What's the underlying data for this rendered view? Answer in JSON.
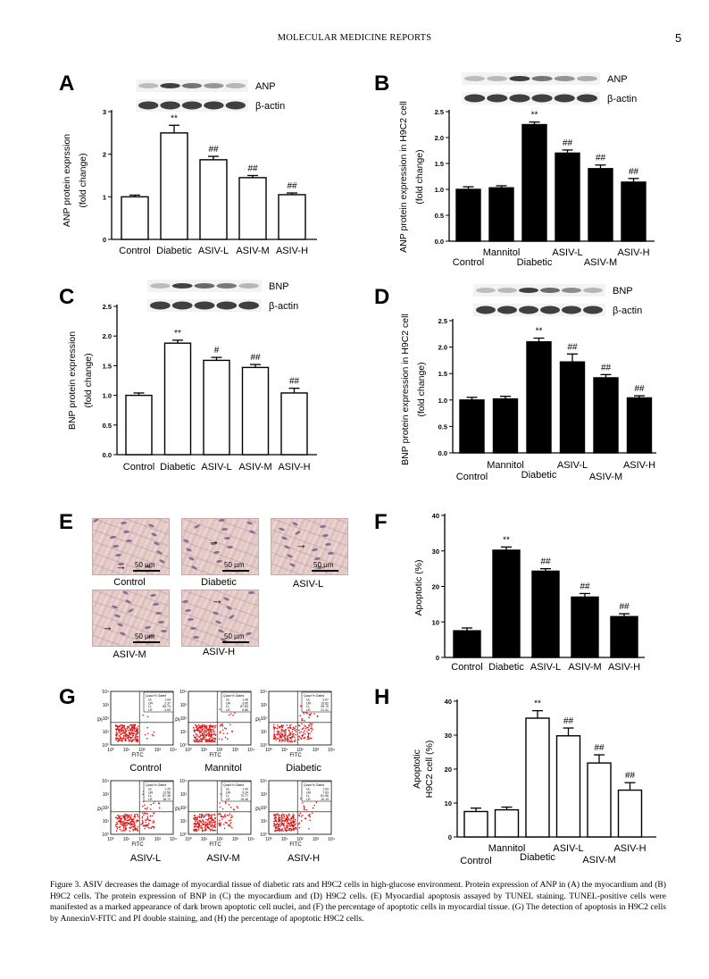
{
  "header": {
    "title": "MOLECULAR MEDICINE REPORTS",
    "page": "5"
  },
  "chart_data": [
    {
      "panel": "A",
      "type": "bar",
      "style": "open",
      "categories": [
        "Control",
        "Diabetic",
        "ASIV-L",
        "ASIV-M",
        "ASIV-H"
      ],
      "values": [
        1.0,
        2.5,
        1.87,
        1.45,
        1.05
      ],
      "errors": [
        0.04,
        0.18,
        0.08,
        0.05,
        0.04
      ],
      "annotations": [
        "",
        "**",
        "##",
        "##",
        "##"
      ],
      "ylabel": [
        "ANP protein exprssion",
        "(fold change)"
      ],
      "ylim": [
        0,
        3
      ],
      "yticks": [
        0,
        1,
        2,
        3
      ],
      "blot_labels": [
        "ANP",
        "β-actin"
      ]
    },
    {
      "panel": "B",
      "type": "bar",
      "style": "filled",
      "categories": [
        "Control",
        "Mannitol",
        "Diabetic",
        "ASIV-L",
        "ASIV-M",
        "ASIV-H"
      ],
      "values": [
        1.0,
        1.03,
        2.25,
        1.7,
        1.4,
        1.14
      ],
      "errors": [
        0.05,
        0.04,
        0.05,
        0.06,
        0.07,
        0.07
      ],
      "annotations": [
        "",
        "",
        "**",
        "##",
        "##",
        "##"
      ],
      "ylabel": [
        "ANP protein expression in H9C2 cell",
        "(fold change)"
      ],
      "ylim": [
        0,
        2.5
      ],
      "yticks": [
        0.0,
        0.5,
        1.0,
        1.5,
        2.0,
        2.5
      ],
      "blot_labels": [
        "ANP",
        "β-actin"
      ]
    },
    {
      "panel": "C",
      "type": "bar",
      "style": "open",
      "categories": [
        "Control",
        "Diabetic",
        "ASIV-L",
        "ASIV-M",
        "ASIV-H"
      ],
      "values": [
        1.0,
        1.88,
        1.59,
        1.47,
        1.04
      ],
      "errors": [
        0.04,
        0.05,
        0.05,
        0.05,
        0.08
      ],
      "annotations": [
        "",
        "**",
        "#",
        "##",
        "##"
      ],
      "ylabel": [
        "BNP protein expression",
        "(fold change)"
      ],
      "ylim": [
        0,
        2.5
      ],
      "yticks": [
        0.0,
        0.5,
        1.0,
        1.5,
        2.0,
        2.5
      ],
      "blot_labels": [
        "BNP",
        "β-actin"
      ]
    },
    {
      "panel": "D",
      "type": "bar",
      "style": "filled",
      "categories": [
        "Control",
        "Mannitol",
        "Diabetic",
        "ASIV-L",
        "ASIV-M",
        "ASIV-H"
      ],
      "values": [
        1.0,
        1.02,
        2.1,
        1.72,
        1.42,
        1.04
      ],
      "errors": [
        0.05,
        0.05,
        0.07,
        0.15,
        0.06,
        0.04
      ],
      "annotations": [
        "",
        "",
        "**",
        "##",
        "##",
        "##"
      ],
      "ylabel": [
        "BNP protein expression in H9C2 cell",
        "(fold change)"
      ],
      "ylim": [
        0,
        2.5
      ],
      "yticks": [
        0.0,
        0.5,
        1.0,
        1.5,
        2.0,
        2.5
      ],
      "blot_labels": [
        "BNP",
        "β-actin"
      ]
    },
    {
      "panel": "F",
      "type": "bar",
      "style": "filled",
      "categories": [
        "Control",
        "Diabetic",
        "ASIV-L",
        "ASIV-M",
        "ASIV-H"
      ],
      "values": [
        7.5,
        30.2,
        24.3,
        17.0,
        11.5
      ],
      "errors": [
        0.8,
        0.9,
        0.7,
        1.0,
        0.8
      ],
      "annotations": [
        "",
        "**",
        "##",
        "##",
        "##"
      ],
      "ylabel": [
        "Apoptotic  (%)"
      ],
      "ylim": [
        0,
        40
      ],
      "yticks": [
        0,
        10,
        20,
        30,
        40
      ]
    },
    {
      "panel": "H",
      "type": "bar",
      "style": "open",
      "categories": [
        "Control",
        "Mannitol",
        "Diabetic",
        "ASIV-L",
        "ASIV-M",
        "ASIV-H"
      ],
      "values": [
        7.5,
        8.0,
        35.0,
        29.8,
        21.8,
        13.8
      ],
      "errors": [
        1.0,
        0.8,
        2.2,
        2.3,
        2.4,
        2.2
      ],
      "annotations": [
        "",
        "",
        "**",
        "##",
        "##",
        "##"
      ],
      "ylabel": [
        "Apoptotic",
        "H9C2 cell  (%)"
      ],
      "ylim": [
        0,
        40
      ],
      "yticks": [
        0,
        10,
        20,
        30,
        40
      ]
    }
  ],
  "panel_e": {
    "scale_text": "50 μm",
    "images": [
      "Control",
      "Diabetic",
      "ASIV-L",
      "ASIV-M",
      "ASIV-H"
    ]
  },
  "panel_g": {
    "x_axis": "FITC",
    "y_axis": "PI",
    "ticks": [
      "10⁰",
      "10¹",
      "10²",
      "10³",
      "10⁴"
    ],
    "legend_header": [
      "Quad",
      "% Gated"
    ],
    "quadrants": [
      "UL",
      "UR",
      "LL",
      "LR"
    ],
    "plots": [
      {
        "name": "Control",
        "values": [
          "1.09",
          "2.37",
          "89.74",
          "4.00"
        ]
      },
      {
        "name": "Mannitol",
        "values": [
          "1.46",
          "3.85",
          "87.84",
          "6.85"
        ]
      },
      {
        "name": "Diabetic",
        "values": [
          "3.07",
          "15.82",
          "59.70",
          "21.41"
        ]
      },
      {
        "name": "ASIV-L",
        "values": [
          "1.25",
          "12.56",
          "67.48",
          "18.71"
        ]
      },
      {
        "name": "ASIV-M",
        "values": [
          "1.43",
          "9.34",
          "73.77",
          "15.46"
        ]
      },
      {
        "name": "ASIV-H",
        "values": [
          "1.63",
          "7.63",
          "81.06",
          "10.19"
        ]
      }
    ]
  },
  "caption": "Figure 3. ASIV decreases the damage of myocardial tissue of diabetic rats and H9C2 cells in high-glucose environment. Protein expression of ANP in (A) the myocardium and (B) H9C2 cells. The protein expression of BNP in (C) the myocardium and (D) H9C2 cells. (E) Myocardial apoptosis assayed by TUNEL staining. TUNEL-positive cells were manifested as a marked appearance of dark brown apoptotic cell nuclei, and (F) the percentage of apoptotic cells in myocardial tissue. (G) The detection of apoptosis in H9C2 cells by AnnexinV-FITC and PI double staining, and (H) the percentage of apoptotic H9C2 cells.",
  "colors": {
    "bar_fill": "#000000",
    "open_fill": "#ffffff",
    "dots": "#e01818",
    "tissue": "#e6cdc9"
  }
}
